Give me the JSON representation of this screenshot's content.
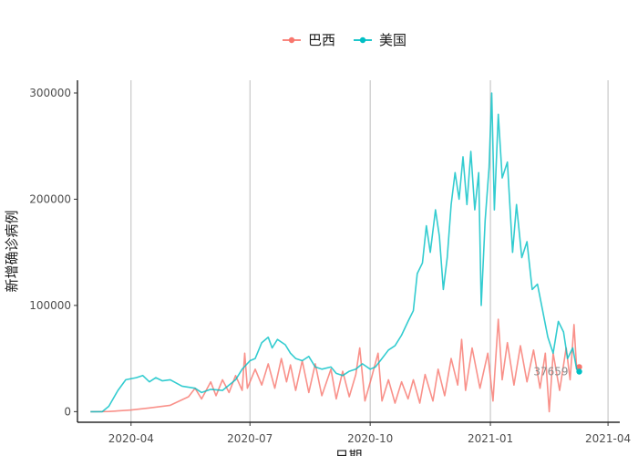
{
  "chart_data": {
    "type": "line",
    "title": "",
    "xlabel": "日期",
    "ylabel": "新增确诊病例",
    "x_range": [
      "2020-02-20",
      "2021-04-10"
    ],
    "ylim": [
      -10000,
      312000
    ],
    "x_ticks": [
      {
        "date": "2020-04-01",
        "label": "2020-04"
      },
      {
        "date": "2020-07-01",
        "label": "2020-07"
      },
      {
        "date": "2020-10-01",
        "label": "2020-10"
      },
      {
        "date": "2021-01-01",
        "label": "2021-01"
      },
      {
        "date": "2021-04-01",
        "label": "2021-04"
      }
    ],
    "y_ticks": [
      {
        "value": 0,
        "label": "0"
      },
      {
        "value": 100000,
        "label": "100000"
      },
      {
        "value": 200000,
        "label": "200000"
      },
      {
        "value": 300000,
        "label": "300000"
      }
    ],
    "grid": "vertical major lines",
    "legend": {
      "position": "top"
    },
    "end_label": {
      "text": "37659",
      "date": "2021-03-10",
      "value": 37659
    },
    "series": [
      {
        "name": "巴西",
        "color": "#F8766D",
        "points": [
          [
            "2020-03-01",
            0
          ],
          [
            "2020-03-15",
            100
          ],
          [
            "2020-04-01",
            1500
          ],
          [
            "2020-04-15",
            3500
          ],
          [
            "2020-05-01",
            6000
          ],
          [
            "2020-05-15",
            14000
          ],
          [
            "2020-05-20",
            22000
          ],
          [
            "2020-05-25",
            12000
          ],
          [
            "2020-06-01",
            28000
          ],
          [
            "2020-06-05",
            15000
          ],
          [
            "2020-06-10",
            30000
          ],
          [
            "2020-06-15",
            18000
          ],
          [
            "2020-06-20",
            34000
          ],
          [
            "2020-06-25",
            20000
          ],
          [
            "2020-06-27",
            55000
          ],
          [
            "2020-06-29",
            22000
          ],
          [
            "2020-07-05",
            40000
          ],
          [
            "2020-07-10",
            25000
          ],
          [
            "2020-07-15",
            45000
          ],
          [
            "2020-07-20",
            22000
          ],
          [
            "2020-07-25",
            50000
          ],
          [
            "2020-07-29",
            28000
          ],
          [
            "2020-08-01",
            44000
          ],
          [
            "2020-08-05",
            20000
          ],
          [
            "2020-08-10",
            48000
          ],
          [
            "2020-08-15",
            18000
          ],
          [
            "2020-08-20",
            45000
          ],
          [
            "2020-08-25",
            15000
          ],
          [
            "2020-09-01",
            40000
          ],
          [
            "2020-09-05",
            12000
          ],
          [
            "2020-09-10",
            38000
          ],
          [
            "2020-09-15",
            14000
          ],
          [
            "2020-09-20",
            35000
          ],
          [
            "2020-09-23",
            60000
          ],
          [
            "2020-09-27",
            10000
          ],
          [
            "2020-10-02",
            32000
          ],
          [
            "2020-10-07",
            55000
          ],
          [
            "2020-10-10",
            10000
          ],
          [
            "2020-10-15",
            30000
          ],
          [
            "2020-10-20",
            8000
          ],
          [
            "2020-10-25",
            28000
          ],
          [
            "2020-10-30",
            12000
          ],
          [
            "2020-11-03",
            30000
          ],
          [
            "2020-11-08",
            8000
          ],
          [
            "2020-11-12",
            35000
          ],
          [
            "2020-11-18",
            10000
          ],
          [
            "2020-11-22",
            40000
          ],
          [
            "2020-11-27",
            15000
          ],
          [
            "2020-12-02",
            50000
          ],
          [
            "2020-12-07",
            25000
          ],
          [
            "2020-12-10",
            68000
          ],
          [
            "2020-12-13",
            20000
          ],
          [
            "2020-12-18",
            60000
          ],
          [
            "2020-12-24",
            22000
          ],
          [
            "2020-12-30",
            55000
          ],
          [
            "2021-01-03",
            10000
          ],
          [
            "2021-01-07",
            87000
          ],
          [
            "2021-01-10",
            30000
          ],
          [
            "2021-01-14",
            65000
          ],
          [
            "2021-01-19",
            25000
          ],
          [
            "2021-01-24",
            62000
          ],
          [
            "2021-01-29",
            28000
          ],
          [
            "2021-02-03",
            58000
          ],
          [
            "2021-02-08",
            22000
          ],
          [
            "2021-02-12",
            55000
          ],
          [
            "2021-02-15",
            0
          ],
          [
            "2021-02-18",
            55000
          ],
          [
            "2021-02-23",
            20000
          ],
          [
            "2021-02-28",
            60000
          ],
          [
            "2021-03-03",
            30000
          ],
          [
            "2021-03-06",
            82000
          ],
          [
            "2021-03-08",
            40000
          ],
          [
            "2021-03-10",
            42000
          ]
        ]
      },
      {
        "name": "美国",
        "color": "#00BFC4",
        "points": [
          [
            "2020-03-01",
            0
          ],
          [
            "2020-03-10",
            0
          ],
          [
            "2020-03-15",
            5000
          ],
          [
            "2020-03-22",
            20000
          ],
          [
            "2020-03-28",
            30000
          ],
          [
            "2020-04-05",
            32000
          ],
          [
            "2020-04-10",
            34000
          ],
          [
            "2020-04-15",
            28000
          ],
          [
            "2020-04-20",
            32000
          ],
          [
            "2020-04-25",
            29000
          ],
          [
            "2020-05-01",
            30000
          ],
          [
            "2020-05-10",
            24000
          ],
          [
            "2020-05-20",
            22000
          ],
          [
            "2020-05-25",
            18000
          ],
          [
            "2020-06-01",
            21000
          ],
          [
            "2020-06-10",
            20000
          ],
          [
            "2020-06-15",
            25000
          ],
          [
            "2020-06-20",
            30000
          ],
          [
            "2020-06-25",
            40000
          ],
          [
            "2020-07-01",
            48000
          ],
          [
            "2020-07-05",
            50000
          ],
          [
            "2020-07-10",
            65000
          ],
          [
            "2020-07-15",
            70000
          ],
          [
            "2020-07-18",
            60000
          ],
          [
            "2020-07-22",
            68000
          ],
          [
            "2020-07-28",
            63000
          ],
          [
            "2020-08-01",
            55000
          ],
          [
            "2020-08-05",
            50000
          ],
          [
            "2020-08-10",
            48000
          ],
          [
            "2020-08-15",
            52000
          ],
          [
            "2020-08-20",
            42000
          ],
          [
            "2020-08-25",
            40000
          ],
          [
            "2020-09-01",
            42000
          ],
          [
            "2020-09-05",
            36000
          ],
          [
            "2020-09-10",
            34000
          ],
          [
            "2020-09-15",
            38000
          ],
          [
            "2020-09-20",
            40000
          ],
          [
            "2020-09-25",
            45000
          ],
          [
            "2020-10-01",
            40000
          ],
          [
            "2020-10-05",
            42000
          ],
          [
            "2020-10-10",
            50000
          ],
          [
            "2020-10-15",
            58000
          ],
          [
            "2020-10-20",
            62000
          ],
          [
            "2020-10-25",
            72000
          ],
          [
            "2020-10-30",
            85000
          ],
          [
            "2020-11-03",
            95000
          ],
          [
            "2020-11-06",
            130000
          ],
          [
            "2020-11-10",
            140000
          ],
          [
            "2020-11-13",
            175000
          ],
          [
            "2020-11-16",
            150000
          ],
          [
            "2020-11-20",
            190000
          ],
          [
            "2020-11-23",
            165000
          ],
          [
            "2020-11-26",
            115000
          ],
          [
            "2020-11-29",
            145000
          ],
          [
            "2020-12-02",
            195000
          ],
          [
            "2020-12-05",
            225000
          ],
          [
            "2020-12-08",
            200000
          ],
          [
            "2020-12-11",
            240000
          ],
          [
            "2020-12-14",
            195000
          ],
          [
            "2020-12-17",
            245000
          ],
          [
            "2020-12-20",
            190000
          ],
          [
            "2020-12-23",
            225000
          ],
          [
            "2020-12-25",
            100000
          ],
          [
            "2020-12-28",
            180000
          ],
          [
            "2020-12-31",
            230000
          ],
          [
            "2021-01-02",
            300000
          ],
          [
            "2021-01-04",
            190000
          ],
          [
            "2021-01-07",
            280000
          ],
          [
            "2021-01-10",
            220000
          ],
          [
            "2021-01-14",
            235000
          ],
          [
            "2021-01-18",
            150000
          ],
          [
            "2021-01-21",
            195000
          ],
          [
            "2021-01-25",
            145000
          ],
          [
            "2021-01-29",
            160000
          ],
          [
            "2021-02-02",
            115000
          ],
          [
            "2021-02-06",
            120000
          ],
          [
            "2021-02-10",
            95000
          ],
          [
            "2021-02-14",
            70000
          ],
          [
            "2021-02-18",
            55000
          ],
          [
            "2021-02-22",
            85000
          ],
          [
            "2021-02-26",
            75000
          ],
          [
            "2021-03-01",
            50000
          ],
          [
            "2021-03-05",
            60000
          ],
          [
            "2021-03-08",
            40000
          ],
          [
            "2021-03-10",
            37659
          ]
        ]
      }
    ]
  }
}
